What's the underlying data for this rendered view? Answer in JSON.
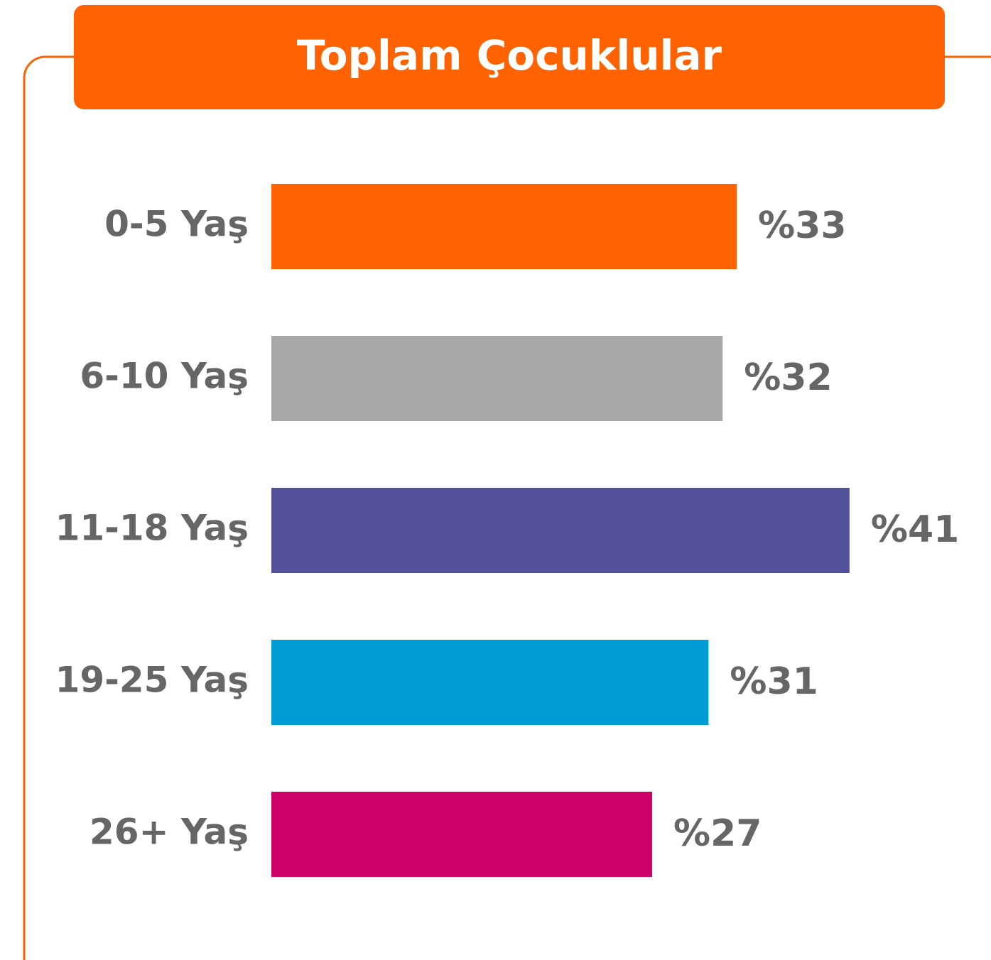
{
  "chart_data": {
    "type": "bar",
    "orientation": "horizontal",
    "title": "Toplam Çocuklular",
    "categories": [
      "0-5 Yaş",
      "6-10 Yaş",
      "11-18 Yaş",
      "19-25 Yaş",
      "26+ Yaş"
    ],
    "values": [
      33,
      32,
      41,
      31,
      27
    ],
    "value_labels": [
      "%33",
      "%32",
      "%41",
      "%31",
      "%27"
    ],
    "colors": [
      "#ff6200",
      "#a8a8a8",
      "#525199",
      "#009cd6",
      "#cc0066"
    ]
  }
}
